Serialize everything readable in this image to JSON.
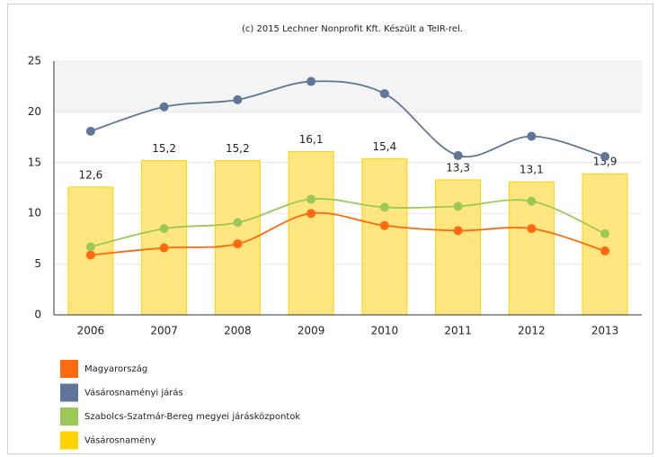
{
  "chart_data": {
    "type": "bar",
    "title": "(c) 2015 Lechner Nonprofit Kft. Készült a TeIR-rel.",
    "categories": [
      "2006",
      "2007",
      "2008",
      "2009",
      "2010",
      "2011",
      "2012",
      "2013"
    ],
    "series": [
      {
        "name": "Magyarország",
        "type": "line",
        "color": "#ff6a10",
        "values": [
          5.9,
          6.6,
          7.0,
          10.0,
          8.8,
          8.3,
          8.5,
          6.3
        ]
      },
      {
        "name": "Vásárosnaményi járás",
        "type": "line",
        "color": "#5f7699",
        "values": [
          18.1,
          20.5,
          21.2,
          23.0,
          21.8,
          15.7,
          17.6,
          15.6
        ]
      },
      {
        "name": "Szabolcs-Szatmár-Bereg megyei járásközpontok",
        "type": "line",
        "color": "#9bc957",
        "values": [
          6.7,
          8.5,
          9.1,
          11.4,
          10.6,
          10.7,
          11.2,
          8.0
        ]
      },
      {
        "name": "Vásárosnamény",
        "type": "bar",
        "color": "#ffd200",
        "values": [
          12.6,
          15.2,
          15.2,
          16.1,
          15.4,
          13.3,
          13.1,
          13.9
        ],
        "value_labels": [
          "12,6",
          "15,2",
          "15,2",
          "16,1",
          "15,4",
          "13,3",
          "13,1",
          "13,9"
        ]
      }
    ],
    "ylim": [
      0,
      25
    ],
    "yticks": [
      0,
      5,
      10,
      15,
      20,
      25
    ],
    "grid": true
  }
}
